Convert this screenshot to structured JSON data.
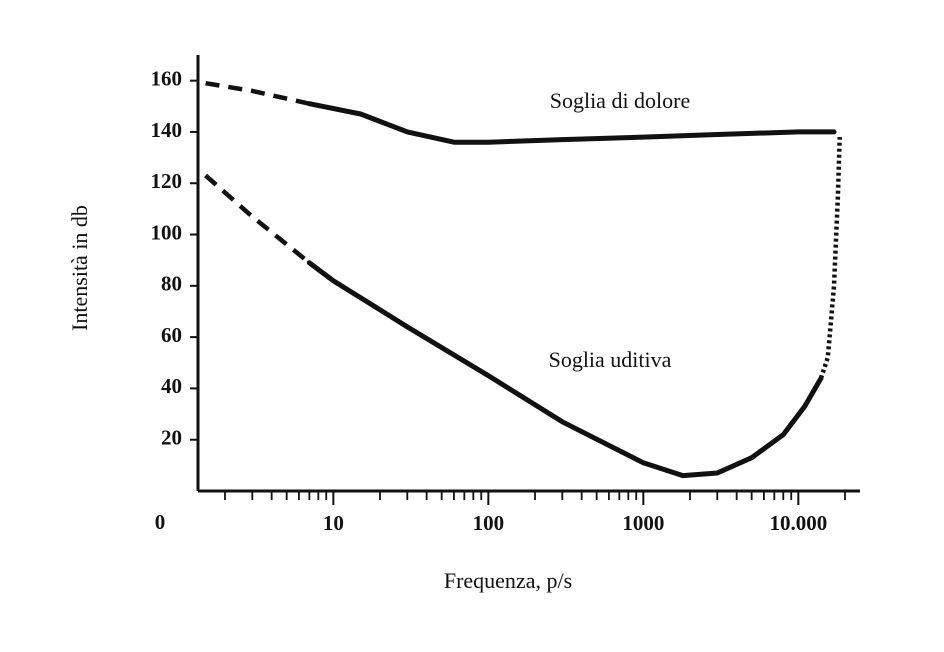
{
  "chart_data": {
    "type": "line",
    "x_label": "Frequenza, p/s",
    "y_label": "Intensità in db",
    "origin_label": "0",
    "xscale": "log",
    "xlim": [
      1.4,
      25000
    ],
    "ylim": [
      0,
      170
    ],
    "xticks": [
      10,
      100,
      1000,
      {
        "value": 10000,
        "label": "10.000"
      }
    ],
    "xminorticks": [
      2,
      3,
      4,
      5,
      6,
      7,
      8,
      9,
      20,
      30,
      40,
      50,
      60,
      70,
      80,
      90,
      200,
      300,
      400,
      500,
      600,
      700,
      800,
      900,
      2000,
      3000,
      4000,
      5000,
      6000,
      7000,
      8000,
      9000,
      20000
    ],
    "yticks": [
      20,
      40,
      60,
      80,
      100,
      120,
      140,
      160
    ],
    "color": "#111111",
    "series": [
      {
        "name": "Soglia di dolore",
        "pieces": [
          {
            "style": "dashed",
            "x": [
              1.5,
              3,
              7
            ],
            "values": [
              159,
              156,
              151
            ]
          },
          {
            "style": "solid",
            "x": [
              7,
              15,
              30,
              60,
              100,
              300,
              1000,
              3000,
              10000,
              17000
            ],
            "values": [
              151,
              147,
              140,
              136,
              136,
              137,
              138,
              139,
              140,
              140
            ]
          }
        ]
      },
      {
        "name": "Soglia uditiva",
        "pieces": [
          {
            "style": "dashed",
            "x": [
              1.5,
              3,
              7
            ],
            "values": [
              123,
              107,
              89
            ]
          },
          {
            "style": "solid",
            "x": [
              7,
              10,
              30,
              100,
              300,
              1000,
              1800,
              3000,
              5000,
              8000,
              11000,
              14000
            ],
            "values": [
              89,
              82,
              64,
              45,
              27,
              11,
              6,
              7,
              13,
              22,
              33,
              44
            ]
          },
          {
            "style": "dotted",
            "x": [
              14000,
              15500,
              17000,
              18000,
              18500
            ],
            "values": [
              44,
              52,
              80,
              115,
              138
            ]
          }
        ]
      }
    ],
    "annotation_positions": "on-curve"
  }
}
